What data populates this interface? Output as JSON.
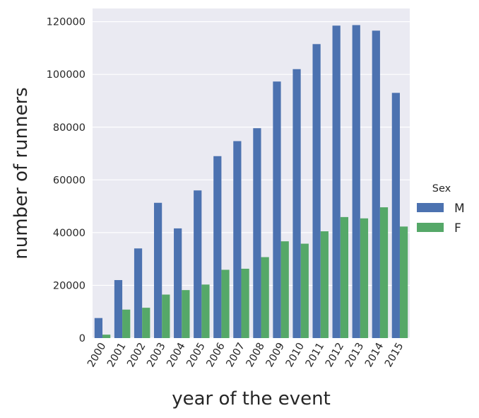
{
  "chart_data": {
    "type": "bar",
    "xlabel": "year of the event",
    "ylabel": "number of runners",
    "categories": [
      "2000",
      "2001",
      "2002",
      "2003",
      "2004",
      "2005",
      "2006",
      "2007",
      "2008",
      "2009",
      "2010",
      "2011",
      "2012",
      "2013",
      "2014",
      "2015"
    ],
    "series": [
      {
        "name": "M",
        "color": "#4c72b0",
        "values": [
          7600,
          22000,
          34000,
          51300,
          41600,
          56000,
          69000,
          74700,
          79600,
          97300,
          102000,
          111500,
          118500,
          118700,
          116600,
          93000
        ]
      },
      {
        "name": "F",
        "color": "#55a868",
        "values": [
          1300,
          10800,
          11500,
          16500,
          18200,
          20300,
          25900,
          26300,
          30700,
          36700,
          35800,
          40500,
          45900,
          45400,
          49600,
          42300
        ]
      }
    ],
    "ylim": [
      0,
      125000
    ],
    "yticks": [
      "0",
      "20000",
      "40000",
      "60000",
      "80000",
      "100000",
      "120000"
    ],
    "legend": {
      "title": "Sex",
      "placement": "right"
    },
    "grid": true,
    "background": "#eaeaf2"
  }
}
